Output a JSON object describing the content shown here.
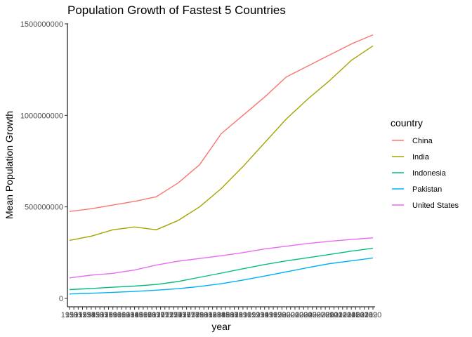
{
  "chart_data": {
    "type": "line",
    "title": "Population Growth of Fastest 5 Countries",
    "xlabel": "year",
    "ylabel": "Mean Population Growth",
    "ylim": [
      0,
      1500000000
    ],
    "xlim": [
      1950,
      2020
    ],
    "y_ticks": [
      0,
      500000000,
      1000000000,
      1500000000
    ],
    "y_tick_labels": [
      "0",
      "500000000",
      "1000000000",
      "1500000000"
    ],
    "x_tick_labels": [
      "1950",
      "1951",
      "1952",
      "1953",
      "1954",
      "1955",
      "1956",
      "1957",
      "1958",
      "1959",
      "1960",
      "1961",
      "1962",
      "1963",
      "1964",
      "1965",
      "1966",
      "1967",
      "1968",
      "1969",
      "1970",
      "1971",
      "1972",
      "1973",
      "1974",
      "1975",
      "1976",
      "1977",
      "1978",
      "1979",
      "1980",
      "1981",
      "1982",
      "1983",
      "1984",
      "1985",
      "1986",
      "1987",
      "1988",
      "1989",
      "1990",
      "1991",
      "1992",
      "1993",
      "1994",
      "1995",
      "1996",
      "1997",
      "1998",
      "1999",
      "2000",
      "2001",
      "2002",
      "2003",
      "2004",
      "2005",
      "2006",
      "2007",
      "2008",
      "2009",
      "2010",
      "2011",
      "2012",
      "2013",
      "2014",
      "2015",
      "2016",
      "2017",
      "2018",
      "2019",
      "2020"
    ],
    "grid": false,
    "legend": {
      "title": "country",
      "position": "right"
    },
    "x": [
      1950,
      1955,
      1960,
      1965,
      1970,
      1975,
      1980,
      1985,
      1990,
      1995,
      2000,
      2005,
      2010,
      2015,
      2020
    ],
    "series": [
      {
        "name": "China",
        "color": "#F8766D",
        "values": [
          475000000,
          490000000,
          510000000,
          530000000,
          555000000,
          630000000,
          730000000,
          900000000,
          1000000000,
          1100000000,
          1210000000,
          1270000000,
          1330000000,
          1390000000,
          1440000000
        ]
      },
      {
        "name": "India",
        "color": "#A3A500",
        "values": [
          317000000,
          340000000,
          375000000,
          390000000,
          375000000,
          425000000,
          500000000,
          600000000,
          720000000,
          850000000,
          980000000,
          1090000000,
          1190000000,
          1300000000,
          1380000000
        ]
      },
      {
        "name": "Indonesia",
        "color": "#00BF7D",
        "values": [
          48000000,
          54000000,
          61000000,
          67000000,
          76000000,
          92000000,
          115000000,
          138000000,
          162000000,
          185000000,
          205000000,
          222000000,
          240000000,
          258000000,
          274000000
        ]
      },
      {
        "name": "Pakistan",
        "color": "#00B0F6",
        "values": [
          24000000,
          28000000,
          33000000,
          38000000,
          45000000,
          53000000,
          65000000,
          80000000,
          100000000,
          122000000,
          145000000,
          168000000,
          190000000,
          205000000,
          221000000
        ]
      },
      {
        "name": "United States",
        "color": "#E76BF3",
        "values": [
          112000000,
          127000000,
          137000000,
          155000000,
          182000000,
          203000000,
          218000000,
          233000000,
          250000000,
          270000000,
          285000000,
          300000000,
          312000000,
          322000000,
          331000000
        ]
      }
    ]
  }
}
